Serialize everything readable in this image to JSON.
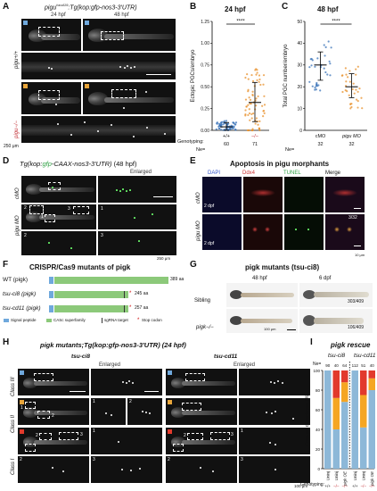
{
  "panelA": {
    "letter": "A",
    "title_pre": "pigu",
    "title_sup": "hzu419",
    "title_post": ":Tg(kop:gfp-nos3-3′UTR)",
    "col1": "24 hpf",
    "col2": "48 hpf",
    "row1": "pigu+/+",
    "row2": "pigu−/−",
    "scale": "250 μm"
  },
  "panelB": {
    "letter": "B",
    "title": "24 hpf",
    "sig": "****",
    "genotyping_label": "Genotyping:",
    "ne_label": "Ne=",
    "chart_data": {
      "type": "scatter",
      "ylabel": "Ectopic PGCs/embryo",
      "ylim": [
        0,
        1.25
      ],
      "yticks": [
        "0.00",
        "0.25",
        "0.50",
        "0.75",
        "1.00",
        "1.25"
      ],
      "categories": [
        "+/+",
        "−/−"
      ],
      "n": [
        "60",
        "71"
      ],
      "series": [
        {
          "mean": 0.04,
          "sd_low": 0.0,
          "sd_high": 0.09
        },
        {
          "mean": 0.32,
          "sd_low": 0.1,
          "sd_high": 0.55
        }
      ]
    }
  },
  "panelC": {
    "letter": "C",
    "title": "48 hpf",
    "sig": "****",
    "ne_label": "Ne=",
    "chart_data": {
      "type": "scatter",
      "ylabel": "Total PGC number/embryo",
      "ylim": [
        0,
        50
      ],
      "yticks": [
        "0",
        "10",
        "20",
        "30",
        "40",
        "50"
      ],
      "categories": [
        "cMO",
        "pigu MO"
      ],
      "n": [
        "32",
        "32"
      ],
      "series": [
        {
          "mean": 30,
          "sd_low": 23,
          "sd_high": 36
        },
        {
          "mean": 20,
          "sd_low": 15,
          "sd_high": 26
        }
      ]
    }
  },
  "panelD": {
    "letter": "D",
    "title_pre": "Tg(kop:",
    "title_gfp": "gfp",
    "title_post": "-CAAX-nos3-3′UTR)",
    "title_time": "(48 hpf)",
    "enlarged": "Enlarged",
    "row1": "cMO",
    "row2": "pigu MO",
    "nums": [
      "1",
      "2",
      "3",
      "1",
      "2",
      "3"
    ],
    "scale": "250 μm"
  },
  "panelE": {
    "letter": "E",
    "title": "Apoptosis in pigu morphants",
    "cols": [
      "DAPI",
      "Ddx4",
      "TUNEL",
      "Merge"
    ],
    "row1": "cMO",
    "row2": "pigu MO",
    "stage": "2 dpf",
    "count": "3/32",
    "scale": "10 μm"
  },
  "panelF": {
    "letter": "F",
    "title": "CRISPR/Cas9 mutants of pigk",
    "rows": [
      {
        "label": "WT (pigk)",
        "aa": "389 aa"
      },
      {
        "label": "tsu-ci8 (pigk)",
        "aa": "245 aa"
      },
      {
        "label": "tsu-cd11 (pigk)",
        "aa": "257 aa"
      }
    ],
    "legend": [
      "Signal peptide",
      "CASc superfamily",
      "sgRNA target",
      "Stop codon"
    ]
  },
  "panelG": {
    "letter": "G",
    "title": "pigk mutants (tsu-ci8)",
    "col1": "48 hpf",
    "col2": "6 dpf",
    "row1": "Sibling",
    "row2": "pigk−/−",
    "count1": "303/409",
    "count2": "106/409",
    "scale": "100 μm"
  },
  "panelH": {
    "letter": "H",
    "title": "pigk mutants;Tg(kop:gfp-nos3-3′UTR) (24 hpf)",
    "left": "tsu-ci8",
    "right": "tsu-cd11",
    "enlarged": "Enlarged",
    "classes": [
      "Class III",
      "Class II",
      "Class I"
    ],
    "scale": "100 μm"
  },
  "panelI": {
    "letter": "I",
    "title": "pigk rescue",
    "group1": "tsu-ci8",
    "group2": "tsu-cd11",
    "ne_label": "Ne=",
    "genotyping_label": "Genotyping:",
    "colors": {
      "classI": "#e23a2c",
      "classII": "#f5a623",
      "classIII": "#8db8d8"
    },
    "chart_data": {
      "type": "bar",
      "ylabel": "Fraction of embryos (%)",
      "ylim": [
        0,
        100
      ],
      "yticks": [
        "0",
        "20",
        "40",
        "60",
        "80",
        "100"
      ],
      "categories": [
        "Uninj",
        "Uninj",
        "pigk OE",
        "Uninj",
        "Uninj",
        "pigk OE"
      ],
      "genotypes": [
        "+/+",
        "−/−",
        "−/−",
        "+/+",
        "−/−",
        "−/−"
      ],
      "n": [
        "90",
        "40",
        "64",
        "112",
        "51",
        "40"
      ],
      "series": [
        {
          "values": [
            100,
            40,
            68,
            100,
            42,
            80
          ]
        },
        {
          "values": [
            0,
            32,
            20,
            0,
            33,
            12
          ]
        },
        {
          "values": [
            0,
            28,
            12,
            0,
            25,
            8
          ]
        }
      ]
    }
  }
}
